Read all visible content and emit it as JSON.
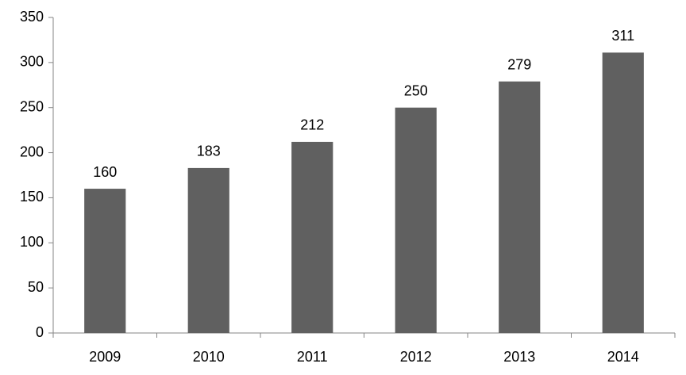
{
  "chart_data": {
    "type": "bar",
    "categories": [
      "2009",
      "2010",
      "2011",
      "2012",
      "2013",
      "2014"
    ],
    "values": [
      160,
      183,
      212,
      250,
      279,
      311
    ],
    "color": "#606060",
    "ylim": [
      0,
      350
    ],
    "yticks": [
      0,
      50,
      100,
      150,
      200,
      250,
      300,
      350
    ],
    "grid": false
  }
}
